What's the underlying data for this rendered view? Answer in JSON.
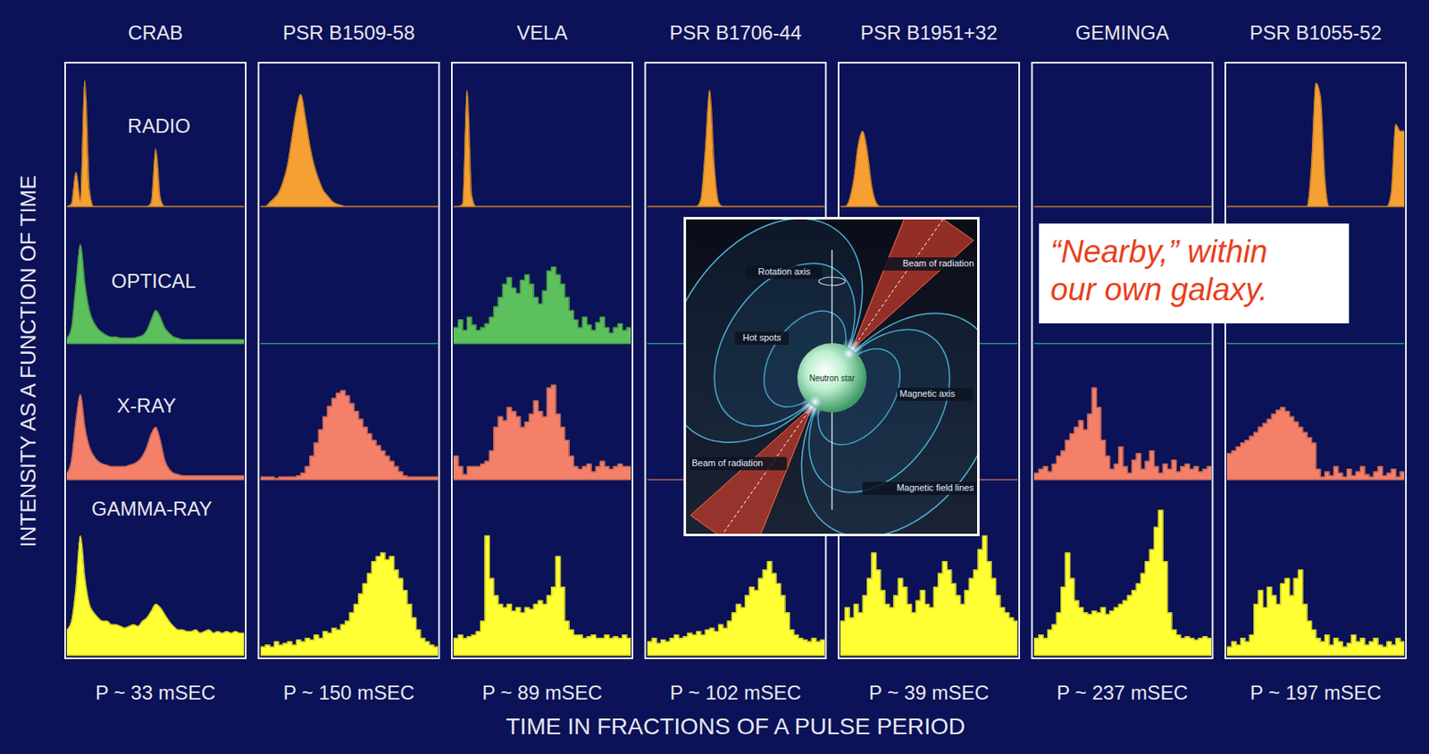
{
  "chart_data": {
    "type": "area",
    "y_label": "INTENSITY AS A FUNCTION OF TIME",
    "x_label": "TIME IN FRACTIONS OF A PULSE PERIOD",
    "annotation": "“Nearby,” within our own galaxy.",
    "xlim": [
      0,
      1
    ],
    "ylim": [
      0,
      100
    ],
    "tick_labels": false,
    "bands": [
      {
        "name": "RADIO",
        "color": "#f6a033"
      },
      {
        "name": "OPTICAL",
        "color": "#5cc15c"
      },
      {
        "name": "X-RAY",
        "color": "#f4806a"
      },
      {
        "name": "GAMMA-RAY",
        "color": "#ffff33"
      }
    ],
    "panels": [
      {
        "name": "CRAB",
        "period": "P ~ 33 mSEC",
        "profiles": [
          [
            0,
            2,
            25,
            4,
            92,
            12,
            0,
            0,
            0,
            0,
            0,
            0,
            0,
            0,
            0,
            0,
            0,
            0,
            0,
            3,
            42,
            6,
            0,
            0,
            0,
            0,
            0,
            0,
            0,
            0,
            0,
            0,
            0,
            0,
            0,
            0,
            0,
            0,
            0,
            0
          ],
          [
            4,
            12,
            45,
            75,
            45,
            25,
            16,
            11,
            8,
            6,
            5,
            5,
            4,
            4,
            4,
            4,
            5,
            6,
            10,
            18,
            25,
            20,
            12,
            8,
            5,
            4,
            3,
            3,
            3,
            3,
            3,
            3,
            3,
            3,
            3,
            3,
            3,
            3,
            3,
            3
          ],
          [
            5,
            15,
            45,
            65,
            40,
            25,
            18,
            14,
            12,
            11,
            10,
            10,
            10,
            10,
            11,
            12,
            14,
            18,
            25,
            35,
            40,
            30,
            15,
            8,
            5,
            4,
            3,
            3,
            3,
            3,
            3,
            3,
            3,
            3,
            3,
            3,
            3,
            3,
            3,
            3
          ],
          [
            15,
            20,
            40,
            70,
            45,
            30,
            25,
            22,
            20,
            20,
            18,
            18,
            17,
            16,
            17,
            18,
            17,
            20,
            22,
            26,
            30,
            28,
            24,
            20,
            17,
            15,
            15,
            14,
            14,
            15,
            13,
            14,
            15,
            13,
            14,
            13,
            14,
            13,
            14,
            13
          ]
        ]
      },
      {
        "name": "PSR B1509-58",
        "period": "P ~ 150 mSEC",
        "profiles": [
          [
            0,
            0,
            3,
            6,
            10,
            18,
            30,
            50,
            70,
            82,
            65,
            45,
            30,
            20,
            12,
            8,
            4,
            2,
            1,
            0,
            0,
            0,
            0,
            0,
            0,
            0,
            0,
            0,
            0,
            0,
            0,
            0,
            0,
            0,
            0,
            0,
            0,
            0,
            0,
            0
          ],
          null,
          [
            2,
            2,
            2,
            1,
            2,
            2,
            2,
            2,
            3,
            5,
            10,
            18,
            28,
            38,
            48,
            56,
            62,
            66,
            68,
            64,
            58,
            52,
            46,
            40,
            35,
            30,
            26,
            22,
            18,
            14,
            10,
            6,
            3,
            2,
            2,
            2,
            2,
            2,
            2,
            2
          ],
          [
            5,
            6,
            5,
            8,
            6,
            7,
            8,
            6,
            9,
            8,
            10,
            9,
            12,
            10,
            14,
            13,
            16,
            15,
            18,
            20,
            25,
            30,
            36,
            42,
            48,
            55,
            58,
            60,
            56,
            58,
            50,
            45,
            38,
            30,
            22,
            15,
            10,
            8,
            6,
            5
          ]
        ]
      },
      {
        "name": "VELA",
        "period": "P ~ 89 mSEC",
        "profiles": [
          [
            0,
            0,
            2,
            85,
            8,
            0,
            0,
            0,
            0,
            0,
            0,
            0,
            0,
            0,
            0,
            0,
            0,
            0,
            0,
            0,
            0,
            0,
            0,
            0,
            0,
            0,
            0,
            0,
            0,
            0,
            0,
            0,
            0,
            0,
            0,
            0,
            0,
            0,
            0,
            0
          ],
          [
            12,
            18,
            10,
            20,
            14,
            10,
            12,
            15,
            20,
            28,
            35,
            45,
            50,
            42,
            38,
            48,
            52,
            45,
            35,
            30,
            40,
            55,
            58,
            52,
            45,
            35,
            25,
            18,
            12,
            20,
            14,
            10,
            16,
            20,
            12,
            8,
            12,
            15,
            10,
            12
          ],
          [
            18,
            10,
            4,
            10,
            10,
            10,
            12,
            14,
            22,
            40,
            48,
            45,
            55,
            52,
            48,
            40,
            44,
            50,
            60,
            52,
            48,
            70,
            72,
            50,
            40,
            30,
            18,
            10,
            8,
            10,
            12,
            6,
            10,
            14,
            10,
            8,
            10,
            12,
            10,
            10
          ],
          [
            10,
            12,
            10,
            11,
            12,
            14,
            20,
            70,
            45,
            35,
            30,
            28,
            30,
            26,
            28,
            25,
            28,
            27,
            30,
            32,
            30,
            35,
            40,
            58,
            40,
            20,
            15,
            12,
            12,
            10,
            11,
            12,
            10,
            10,
            12,
            10,
            11,
            10,
            12,
            10
          ]
        ]
      },
      {
        "name": "PSR B1706-44",
        "period": "P ~ 102 mSEC",
        "profiles": [
          [
            0,
            0,
            0,
            0,
            0,
            0,
            0,
            0,
            0,
            0,
            0,
            0,
            5,
            40,
            85,
            30,
            3,
            0,
            0,
            0,
            0,
            0,
            0,
            0,
            0,
            0,
            0,
            0,
            0,
            0,
            0,
            0,
            0,
            0,
            0,
            0,
            0,
            0,
            0,
            0
          ],
          null,
          null,
          [
            8,
            10,
            7,
            9,
            8,
            10,
            12,
            10,
            11,
            13,
            12,
            14,
            12,
            15,
            16,
            14,
            18,
            16,
            20,
            25,
            30,
            28,
            35,
            40,
            38,
            45,
            50,
            55,
            48,
            42,
            35,
            25,
            15,
            12,
            10,
            9,
            8,
            10,
            8,
            9
          ]
        ]
      },
      {
        "name": "PSR B1951+32",
        "period": "P ~ 39 mSEC",
        "profiles": [
          [
            0,
            0,
            5,
            20,
            45,
            55,
            40,
            15,
            3,
            0,
            0,
            0,
            0,
            0,
            0,
            0,
            0,
            0,
            0,
            0,
            0,
            0,
            0,
            0,
            0,
            0,
            0,
            0,
            0,
            0,
            0,
            0,
            0,
            0,
            0,
            0,
            0,
            0,
            0,
            0
          ],
          null,
          null,
          [
            20,
            28,
            22,
            30,
            25,
            35,
            45,
            60,
            50,
            38,
            30,
            28,
            35,
            45,
            40,
            30,
            25,
            32,
            38,
            30,
            28,
            40,
            48,
            55,
            50,
            42,
            35,
            30,
            38,
            45,
            50,
            62,
            70,
            55,
            45,
            35,
            28,
            25,
            22,
            20
          ]
        ]
      },
      {
        "name": "GEMINGA",
        "period": "P ~ 237 mSEC",
        "profiles": [
          null,
          null,
          [
            5,
            8,
            10,
            6,
            12,
            18,
            22,
            30,
            35,
            40,
            45,
            38,
            50,
            70,
            55,
            30,
            18,
            8,
            12,
            25,
            10,
            5,
            15,
            20,
            8,
            14,
            22,
            10,
            5,
            12,
            8,
            15,
            6,
            10,
            12,
            8,
            10,
            6,
            8,
            10
          ],
          [
            10,
            12,
            10,
            15,
            18,
            25,
            40,
            60,
            45,
            32,
            28,
            25,
            24,
            26,
            25,
            28,
            24,
            26,
            28,
            30,
            32,
            35,
            38,
            42,
            48,
            55,
            62,
            75,
            85,
            55,
            25,
            15,
            12,
            10,
            11,
            10,
            9,
            10,
            11,
            10
          ]
        ]
      },
      {
        "name": "PSR B1055-52",
        "period": "P ~ 197 mSEC",
        "profiles": [
          [
            0,
            0,
            0,
            0,
            0,
            0,
            0,
            0,
            0,
            0,
            0,
            0,
            0,
            0,
            0,
            0,
            0,
            0,
            0,
            30,
            90,
            80,
            20,
            0,
            0,
            0,
            0,
            0,
            0,
            0,
            0,
            0,
            0,
            0,
            0,
            0,
            0,
            10,
            60,
            55
          ],
          null,
          [
            20,
            22,
            25,
            28,
            30,
            33,
            36,
            40,
            43,
            46,
            50,
            53,
            55,
            52,
            48,
            44,
            40,
            36,
            32,
            28,
            8,
            2,
            6,
            3,
            10,
            5,
            2,
            8,
            3,
            6,
            10,
            4,
            2,
            6,
            10,
            3,
            5,
            8,
            2,
            6
          ],
          [
            5,
            8,
            6,
            10,
            8,
            12,
            30,
            38,
            28,
            40,
            35,
            30,
            42,
            45,
            35,
            45,
            50,
            30,
            20,
            15,
            10,
            8,
            12,
            6,
            10,
            8,
            5,
            7,
            12,
            8,
            10,
            6,
            8,
            10,
            6,
            5,
            8,
            6,
            10,
            8
          ]
        ]
      }
    ],
    "inset": {
      "labels": [
        "Rotation axis",
        "Beam of radiation",
        "Hot spots",
        "Neutron star",
        "Magnetic axis",
        "Magnetic field lines",
        "Beam of radiation"
      ]
    }
  }
}
